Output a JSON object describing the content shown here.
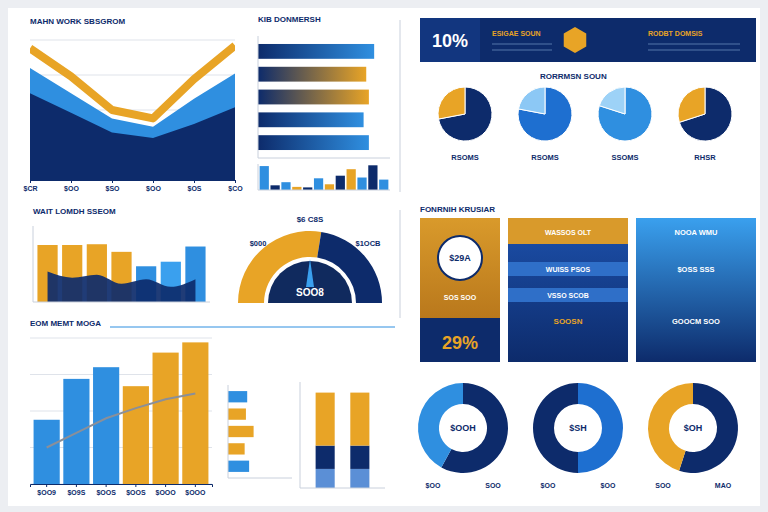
{
  "chart_data": [
    {
      "type": "area",
      "title": "MAHN WORK SBSGROM",
      "categories": [
        "$CR",
        "$OO",
        "$SO",
        "$OO",
        "$OS",
        "$CO"
      ],
      "ylim": [
        0,
        100
      ],
      "yticks": [
        0,
        25,
        50,
        75,
        100
      ],
      "grid": true,
      "tick_labels": "x",
      "series": [
        {
          "type": "area",
          "color": "#2f8fe0",
          "values": [
            80,
            62,
            44,
            38,
            58,
            76
          ]
        },
        {
          "type": "area",
          "color": "#0d2b6b",
          "values": [
            62,
            48,
            34,
            30,
            40,
            52
          ]
        },
        {
          "type": "line",
          "color": "#e8a426",
          "values": [
            94,
            74,
            50,
            44,
            72,
            96
          ]
        }
      ]
    },
    {
      "type": "bar",
      "orientation": "horizontal",
      "title": "KIB DONMERSH",
      "categories": [
        null,
        null,
        null,
        null,
        null
      ],
      "values": [
        88,
        82,
        84,
        80,
        84
      ],
      "colors": [
        "#2f8fe0",
        "#e8a426",
        "#e8a426",
        "#2f8fe0",
        "#2f8fe0"
      ],
      "xlim": [
        0,
        100
      ],
      "tick_labels": false
    },
    {
      "type": "bar",
      "categories": [
        null,
        null,
        null,
        null,
        null,
        null,
        null,
        null,
        null,
        null,
        null,
        null
      ],
      "values": [
        92,
        18,
        30,
        12,
        10,
        45,
        22,
        55,
        80,
        48,
        95,
        40
      ],
      "colors": [
        "#2f8fe0",
        "#0d2b6b",
        "#2f8fe0",
        "#e8a426",
        "#0d2b6b",
        "#2f8fe0",
        "#e8a426",
        "#0d2b6b",
        "#e8a426",
        "#2f8fe0",
        "#0d2b6b",
        "#2f8fe0"
      ],
      "ylim": [
        0,
        100
      ],
      "tick_labels": false
    },
    {
      "type": "pie",
      "title": "RSOMS",
      "values": [
        72,
        28
      ],
      "colors": [
        "#0d2b6b",
        "#e8a426"
      ]
    },
    {
      "type": "pie",
      "title": "RSOMS",
      "values": [
        78,
        22
      ],
      "colors": [
        "#1e6fd0",
        "#8cc8f5"
      ]
    },
    {
      "type": "pie",
      "title": "SSOMS",
      "values": [
        80,
        20
      ],
      "colors": [
        "#2f8fe0",
        "#9dd2f7"
      ]
    },
    {
      "type": "pie",
      "title": "RHSR",
      "values": [
        70,
        30
      ],
      "colors": [
        "#0d2b6b",
        "#e8a426"
      ]
    },
    {
      "type": "bar",
      "title": "WAIT LOMDH SSEOM",
      "categories": [
        null,
        null,
        null,
        null,
        null,
        null,
        null
      ],
      "ylim": [
        0,
        100
      ],
      "tick_labels": false,
      "series": [
        {
          "type": "bar",
          "colors": [
            "#e8a426",
            "#e8a426",
            "#e8a426",
            "#e8a426",
            "#2f8fe0",
            "#3aa0ee",
            "#2f8fe0"
          ],
          "values": [
            75,
            75,
            76,
            66,
            47,
            53,
            73
          ]
        },
        {
          "type": "area",
          "color": "#0d2b6b",
          "values": [
            40,
            32,
            36,
            24,
            30,
            20,
            30
          ]
        }
      ]
    },
    {
      "type": "gauge",
      "title": "$6 C8S",
      "values": [
        55,
        45
      ],
      "colors": [
        "#e8a426",
        "#0d2b6b"
      ],
      "annotations": [
        "$000",
        "$1OCB",
        "SOO8"
      ]
    },
    {
      "type": "bar",
      "title": "EOM MEMT MOGA",
      "categories": [
        "$OO9",
        "$O9S",
        "$OOS",
        "$OOS",
        "$OOO",
        "$OOO"
      ],
      "ylim": [
        0,
        100
      ],
      "yticks": [
        0,
        25,
        50,
        75,
        100
      ],
      "grid": true,
      "tick_labels": "x",
      "series": [
        {
          "type": "bar",
          "colors": [
            "#2f8fe0",
            "#2f8fe0",
            "#2f8fe0",
            "#e8a426",
            "#e8a426",
            "#e8a426"
          ],
          "values": [
            44,
            72,
            80,
            67,
            90,
            97
          ]
        },
        {
          "type": "line",
          "color": "#8a8f99",
          "values": [
            25,
            35,
            45,
            52,
            58,
            62
          ]
        }
      ]
    },
    {
      "type": "bar",
      "orientation": "horizontal",
      "categories": [
        null,
        null,
        null,
        null,
        null
      ],
      "values": [
        30,
        28,
        40,
        26,
        33
      ],
      "colors": [
        "#2f8fe0",
        "#e8a426",
        "#e8a426",
        "#e8a426",
        "#2f8fe0"
      ],
      "xlim": [
        0,
        100
      ],
      "tick_labels": false
    },
    {
      "type": "bar",
      "stacked": true,
      "categories": [
        null,
        null
      ],
      "ylim": [
        0,
        100
      ],
      "tick_labels": false,
      "series": [
        {
          "color": "#5b8fd6",
          "values": [
            18,
            18
          ]
        },
        {
          "color": "#0d2b6b",
          "values": [
            22,
            22
          ]
        },
        {
          "color": "#e8a426",
          "values": [
            50,
            50
          ]
        }
      ]
    },
    {
      "type": "donut",
      "values": [
        58,
        42
      ],
      "colors": [
        "#0d2b6b",
        "#2f8fe0"
      ],
      "annotations": [
        "$OOH",
        "$OO",
        "SOO"
      ]
    },
    {
      "type": "donut",
      "values": [
        50,
        50
      ],
      "colors": [
        "#1e6fd0",
        "#0d2b6b"
      ],
      "annotations": [
        "$SH",
        "$OO",
        "$OO"
      ]
    },
    {
      "type": "donut",
      "values": [
        55,
        45
      ],
      "colors": [
        "#0d2b6b",
        "#e8a426"
      ],
      "annotations": [
        "$OH",
        "SOO",
        "MAO"
      ]
    }
  ],
  "banner": {
    "value": "10%",
    "left": "ESIGAE SOUN",
    "right": "RODBT DOMSIS",
    "heading": "RORRMSN SOUN"
  },
  "cards": {
    "title": "FONRNIH KRUSIAR",
    "left": {
      "circle": "$29A",
      "caption": "SOS SOO",
      "value": "29%"
    },
    "middle": [
      "WASSOS OLT",
      "WUISS PSOS",
      "VSSO SCOB",
      "SOOSN"
    ],
    "right": [
      "NOOA WMU",
      "$OSS SSS",
      "GOOCM SOO"
    ]
  }
}
